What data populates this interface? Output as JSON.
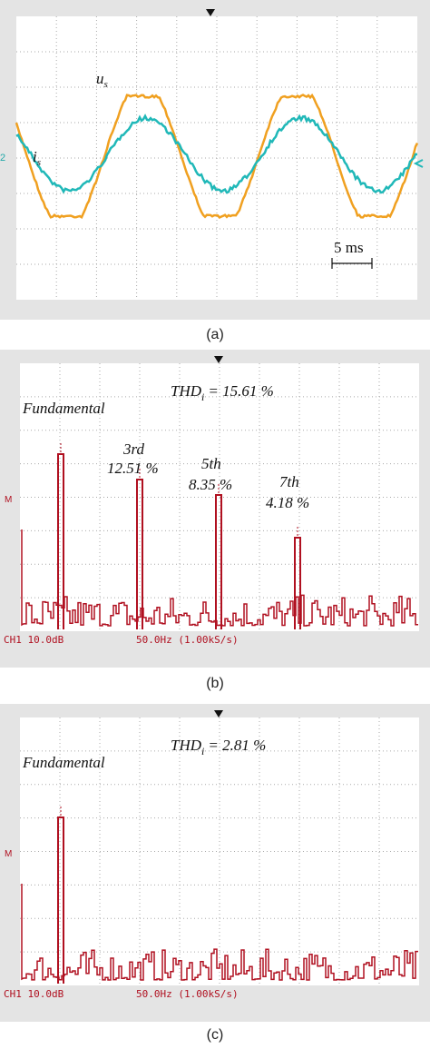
{
  "panel_a": {
    "voltage_label": {
      "base": "u",
      "sub": "s"
    },
    "current_label": {
      "base": "i",
      "sub": "s"
    },
    "channel_marker": "2",
    "scale": "5 ms",
    "caption": "(a)"
  },
  "panel_b": {
    "thd": {
      "base": "THD",
      "sub": "i",
      "value": "= 15.61 %"
    },
    "fundamental": "Fundamental",
    "harmonics": [
      {
        "order": "3rd",
        "value": "12.51 %"
      },
      {
        "order": "5th",
        "value": "8.35 %"
      },
      {
        "order": "7th",
        "value": "4.18 %"
      }
    ],
    "marker": "M",
    "footer_left": "CH1 10.0dB",
    "footer_right": "50.0Hz (1.00kS/s)",
    "caption": "(b)"
  },
  "panel_c": {
    "thd": {
      "base": "THD",
      "sub": "i",
      "value": "= 2.81 %"
    },
    "fundamental": "Fundamental",
    "marker": "M",
    "footer_left": "CH1 10.0dB",
    "footer_right": "50.0Hz (1.00kS/s)",
    "caption": "(c)"
  }
}
